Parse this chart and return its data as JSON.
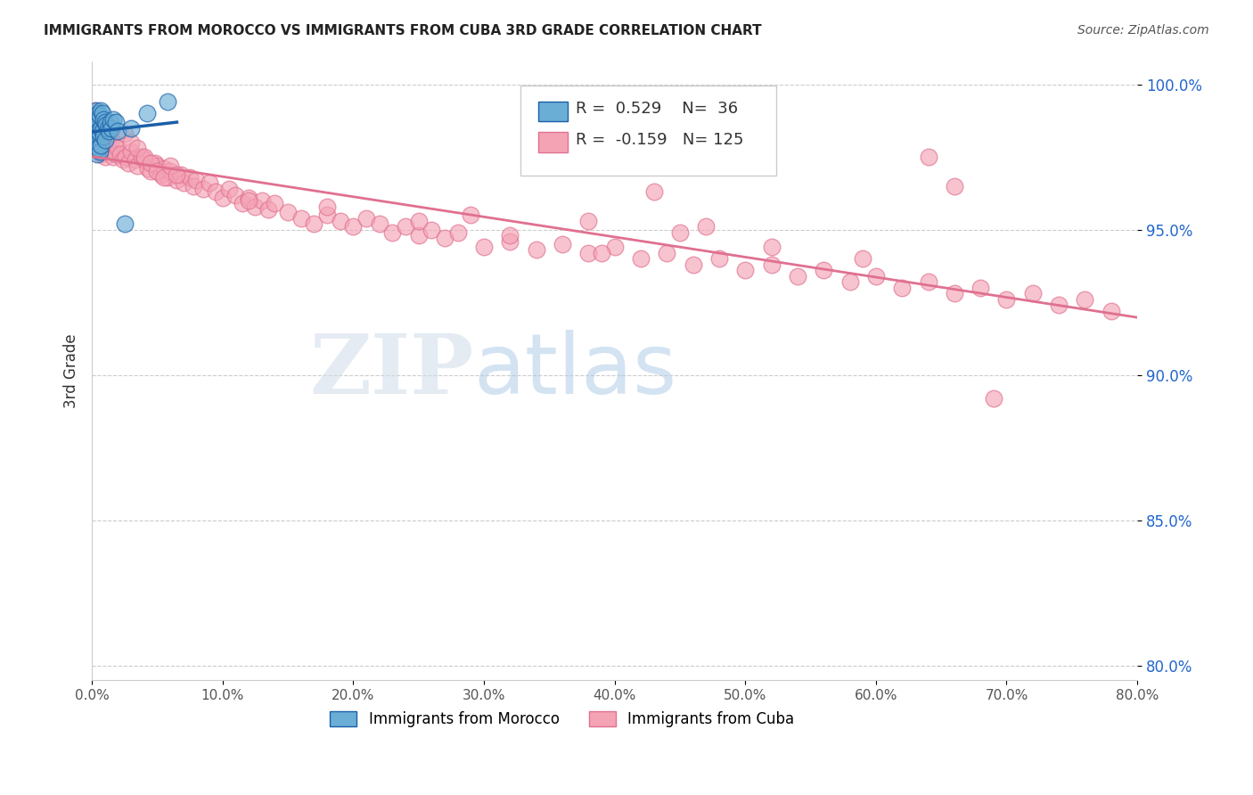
{
  "title": "IMMIGRANTS FROM MOROCCO VS IMMIGRANTS FROM CUBA 3RD GRADE CORRELATION CHART",
  "source": "Source: ZipAtlas.com",
  "ylabel": "3rd Grade",
  "xmin": 0.0,
  "xmax": 0.8,
  "ymin": 0.795,
  "ymax": 1.008,
  "yticks": [
    1.0,
    0.95,
    0.9,
    0.85,
    0.8
  ],
  "ytick_labels": [
    "100.0%",
    "95.0%",
    "90.0%",
    "85.0%",
    "80.0%"
  ],
  "xticks": [
    0.0,
    0.1,
    0.2,
    0.3,
    0.4,
    0.5,
    0.6,
    0.7,
    0.8
  ],
  "xtick_labels": [
    "0.0%",
    "10.0%",
    "20.0%",
    "30.0%",
    "40.0%",
    "50.0%",
    "60.0%",
    "70.0%",
    "80.0%"
  ],
  "morocco_R": 0.529,
  "morocco_N": 36,
  "cuba_R": -0.159,
  "cuba_N": 125,
  "morocco_color": "#6aaed6",
  "cuba_color": "#f4a3b5",
  "morocco_line_color": "#1a5fa8",
  "cuba_line_color": "#e07090",
  "morocco_scatter_x": [
    0.001,
    0.002,
    0.002,
    0.003,
    0.003,
    0.003,
    0.004,
    0.004,
    0.004,
    0.005,
    0.005,
    0.005,
    0.006,
    0.006,
    0.006,
    0.007,
    0.007,
    0.007,
    0.008,
    0.008,
    0.009,
    0.009,
    0.01,
    0.01,
    0.011,
    0.012,
    0.013,
    0.014,
    0.015,
    0.016,
    0.018,
    0.02,
    0.025,
    0.03,
    0.042,
    0.058
  ],
  "morocco_scatter_y": [
    0.984,
    0.989,
    0.982,
    0.991,
    0.985,
    0.979,
    0.988,
    0.983,
    0.976,
    0.99,
    0.984,
    0.978,
    0.989,
    0.983,
    0.977,
    0.991,
    0.985,
    0.979,
    0.99,
    0.984,
    0.988,
    0.982,
    0.987,
    0.981,
    0.986,
    0.985,
    0.984,
    0.987,
    0.985,
    0.988,
    0.987,
    0.984,
    0.952,
    0.985,
    0.99,
    0.994
  ],
  "cuba_scatter_x": [
    0.002,
    0.003,
    0.003,
    0.004,
    0.004,
    0.005,
    0.005,
    0.006,
    0.006,
    0.007,
    0.007,
    0.008,
    0.008,
    0.009,
    0.009,
    0.01,
    0.01,
    0.011,
    0.012,
    0.013,
    0.014,
    0.015,
    0.016,
    0.017,
    0.018,
    0.02,
    0.022,
    0.024,
    0.026,
    0.028,
    0.03,
    0.033,
    0.035,
    0.038,
    0.04,
    0.043,
    0.045,
    0.048,
    0.05,
    0.053,
    0.055,
    0.058,
    0.06,
    0.065,
    0.068,
    0.07,
    0.075,
    0.078,
    0.08,
    0.085,
    0.09,
    0.095,
    0.1,
    0.105,
    0.11,
    0.115,
    0.12,
    0.125,
    0.13,
    0.135,
    0.14,
    0.15,
    0.16,
    0.17,
    0.18,
    0.19,
    0.2,
    0.21,
    0.22,
    0.23,
    0.24,
    0.25,
    0.26,
    0.27,
    0.28,
    0.3,
    0.32,
    0.34,
    0.36,
    0.38,
    0.4,
    0.42,
    0.44,
    0.46,
    0.48,
    0.5,
    0.52,
    0.54,
    0.56,
    0.58,
    0.6,
    0.62,
    0.64,
    0.66,
    0.68,
    0.7,
    0.72,
    0.74,
    0.76,
    0.78,
    0.025,
    0.03,
    0.035,
    0.04,
    0.045,
    0.05,
    0.055,
    0.06,
    0.065,
    0.12,
    0.18,
    0.25,
    0.32,
    0.39,
    0.45,
    0.52,
    0.59,
    0.66,
    0.47,
    0.38,
    0.29,
    0.43,
    0.64,
    0.69,
    0.5
  ],
  "cuba_scatter_y": [
    0.991,
    0.985,
    0.981,
    0.988,
    0.982,
    0.986,
    0.979,
    0.984,
    0.977,
    0.983,
    0.976,
    0.985,
    0.978,
    0.984,
    0.977,
    0.981,
    0.975,
    0.98,
    0.982,
    0.979,
    0.977,
    0.981,
    0.975,
    0.98,
    0.976,
    0.978,
    0.976,
    0.974,
    0.975,
    0.973,
    0.977,
    0.974,
    0.972,
    0.975,
    0.974,
    0.971,
    0.97,
    0.973,
    0.972,
    0.969,
    0.971,
    0.968,
    0.97,
    0.967,
    0.969,
    0.966,
    0.968,
    0.965,
    0.967,
    0.964,
    0.966,
    0.963,
    0.961,
    0.964,
    0.962,
    0.959,
    0.961,
    0.958,
    0.96,
    0.957,
    0.959,
    0.956,
    0.954,
    0.952,
    0.955,
    0.953,
    0.951,
    0.954,
    0.952,
    0.949,
    0.951,
    0.948,
    0.95,
    0.947,
    0.949,
    0.944,
    0.946,
    0.943,
    0.945,
    0.942,
    0.944,
    0.94,
    0.942,
    0.938,
    0.94,
    0.936,
    0.938,
    0.934,
    0.936,
    0.932,
    0.934,
    0.93,
    0.932,
    0.928,
    0.93,
    0.926,
    0.928,
    0.924,
    0.926,
    0.922,
    0.983,
    0.98,
    0.978,
    0.975,
    0.973,
    0.97,
    0.968,
    0.972,
    0.969,
    0.96,
    0.958,
    0.953,
    0.948,
    0.942,
    0.949,
    0.944,
    0.94,
    0.965,
    0.951,
    0.953,
    0.955,
    0.963,
    0.975,
    0.892,
    0.974
  ]
}
